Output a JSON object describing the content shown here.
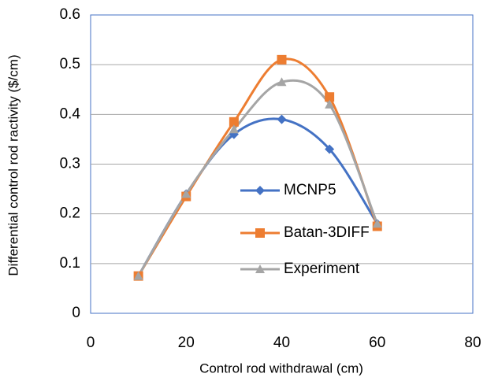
{
  "chart_data": {
    "type": "scatter",
    "xlabel": "Control rod withdrawal (cm)",
    "ylabel": "Differential control rod ractivity ($/cm)",
    "x": [
      10,
      20,
      30,
      40,
      50,
      60
    ],
    "series": [
      {
        "name": "MCNP5",
        "color": "#4472c4",
        "marker": "diamond",
        "values": [
          0.075,
          0.24,
          0.36,
          0.39,
          0.33,
          0.18
        ]
      },
      {
        "name": "Batan-3DIFF",
        "color": "#ed7d31",
        "marker": "square",
        "values": [
          0.075,
          0.235,
          0.385,
          0.51,
          0.435,
          0.175
        ]
      },
      {
        "name": "Experiment",
        "color": "#a5a5a5",
        "marker": "triangle",
        "values": [
          0.075,
          0.24,
          0.37,
          0.465,
          0.42,
          0.18
        ]
      }
    ],
    "xlim": [
      0,
      80
    ],
    "xticks": [
      0,
      20,
      40,
      60,
      80
    ],
    "ylim": [
      0,
      0.6
    ],
    "yticks": [
      0,
      0.1,
      0.2,
      0.3,
      0.4,
      0.5,
      0.6
    ],
    "grid": true,
    "smooth": true
  }
}
